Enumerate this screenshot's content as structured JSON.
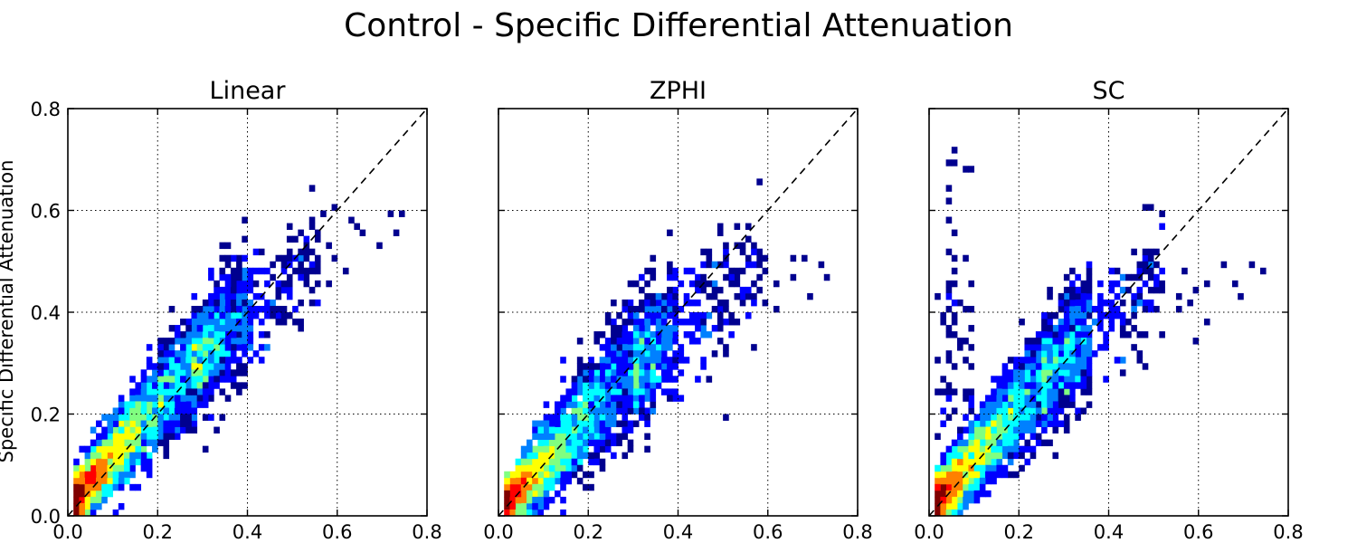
{
  "figure_title": "Control - Specific Differential Attenuation",
  "ylabel": "Specific Differential Attenuation",
  "colormap": [
    "#00008f",
    "#0000ff",
    "#0080ff",
    "#00ffff",
    "#80ff80",
    "#ffff00",
    "#ff8000",
    "#ff0000",
    "#800000"
  ],
  "chart_data": [
    {
      "type": "heatmap",
      "title": "Linear",
      "xlim": [
        0,
        0.8
      ],
      "ylim": [
        0,
        0.8
      ],
      "xticks": [
        "0.0",
        "0.2",
        "0.4",
        "0.6",
        "0.8"
      ],
      "yticks": [
        "0.0",
        "0.2",
        "0.4",
        "0.6",
        "0.8"
      ],
      "grid": true,
      "reference_line": "y = x (dashed)",
      "bin_size": 0.0125,
      "clusters": [
        {
          "type": "band",
          "x0": 0.015,
          "x1": 0.4,
          "slope": 1.02,
          "intercept": 0.045,
          "spread_at_start": 0.025,
          "spread_growth": 0.11,
          "peak_at": 0.06,
          "peak_decay": 0.24,
          "count": 500
        },
        {
          "type": "band",
          "x0": 0.28,
          "x1": 0.56,
          "slope": 0.78,
          "intercept": 0.11,
          "spread_at_start": 0.045,
          "spread_growth": 0.05,
          "peak_at": 0.28,
          "peak_decay": 0.3,
          "count": 55
        },
        {
          "type": "scatter",
          "points": [
            [
              0.43,
              0.52
            ],
            [
              0.46,
              0.49
            ],
            [
              0.5,
              0.51
            ],
            [
              0.52,
              0.47
            ],
            [
              0.55,
              0.45
            ],
            [
              0.57,
              0.59
            ],
            [
              0.6,
              0.61
            ],
            [
              0.63,
              0.58
            ],
            [
              0.64,
              0.57
            ],
            [
              0.66,
              0.55
            ],
            [
              0.69,
              0.53
            ],
            [
              0.72,
              0.6
            ],
            [
              0.74,
              0.59
            ],
            [
              0.73,
              0.56
            ],
            [
              0.6,
              0.5
            ],
            [
              0.62,
              0.48
            ],
            [
              0.58,
              0.45
            ],
            [
              0.55,
              0.42
            ],
            [
              0.5,
              0.41
            ],
            [
              0.47,
              0.39
            ],
            [
              0.52,
              0.37
            ],
            [
              0.44,
              0.36
            ],
            [
              0.48,
              0.44
            ],
            [
              0.42,
              0.46
            ],
            [
              0.58,
              0.53
            ]
          ]
        }
      ]
    },
    {
      "type": "heatmap",
      "title": "ZPHI",
      "xlim": [
        0,
        0.8
      ],
      "ylim": [
        0,
        0.8
      ],
      "xticks": [
        "0.0",
        "0.2",
        "0.4",
        "0.6",
        "0.8"
      ],
      "yticks": [],
      "grid": true,
      "reference_line": "y = x (dashed)",
      "bin_size": 0.0125,
      "clusters": [
        {
          "type": "band",
          "x0": 0.015,
          "x1": 0.4,
          "slope": 0.98,
          "intercept": 0.035,
          "spread_at_start": 0.025,
          "spread_growth": 0.13,
          "peak_at": 0.05,
          "peak_decay": 0.22,
          "count": 480
        },
        {
          "type": "band",
          "x0": 0.3,
          "x1": 0.58,
          "slope": 0.75,
          "intercept": 0.08,
          "spread_at_start": 0.05,
          "spread_growth": 0.05,
          "peak_at": 0.3,
          "peak_decay": 0.3,
          "count": 50
        },
        {
          "type": "scatter",
          "points": [
            [
              0.44,
              0.46
            ],
            [
              0.47,
              0.43
            ],
            [
              0.5,
              0.52
            ],
            [
              0.51,
              0.5
            ],
            [
              0.55,
              0.54
            ],
            [
              0.58,
              0.51
            ],
            [
              0.6,
              0.48
            ],
            [
              0.62,
              0.45
            ],
            [
              0.65,
              0.51
            ],
            [
              0.66,
              0.47
            ],
            [
              0.68,
              0.5
            ],
            [
              0.72,
              0.49
            ],
            [
              0.73,
              0.47
            ],
            [
              0.7,
              0.43
            ],
            [
              0.6,
              0.42
            ],
            [
              0.62,
              0.4
            ],
            [
              0.55,
              0.39
            ],
            [
              0.52,
              0.36
            ],
            [
              0.5,
              0.4
            ],
            [
              0.46,
              0.36
            ],
            [
              0.48,
              0.4
            ],
            [
              0.56,
              0.44
            ],
            [
              0.6,
              0.5
            ]
          ]
        }
      ]
    },
    {
      "type": "heatmap",
      "title": "SC",
      "xlim": [
        0,
        0.8
      ],
      "ylim": [
        0,
        0.8
      ],
      "xticks": [
        "0.0",
        "0.2",
        "0.4",
        "0.6",
        "0.8"
      ],
      "yticks": [],
      "grid": true,
      "reference_line": "y = x (dashed)",
      "bin_size": 0.0125,
      "clusters": [
        {
          "type": "band",
          "x0": 0.015,
          "x1": 0.36,
          "slope": 1.0,
          "intercept": 0.04,
          "spread_at_start": 0.025,
          "spread_growth": 0.12,
          "peak_at": 0.05,
          "peak_decay": 0.23,
          "count": 430
        },
        {
          "type": "band",
          "x0": 0.25,
          "x1": 0.52,
          "slope": 0.8,
          "intercept": 0.1,
          "spread_at_start": 0.045,
          "spread_growth": 0.05,
          "peak_at": 0.25,
          "peak_decay": 0.3,
          "count": 45
        },
        {
          "type": "column",
          "x0": 0.015,
          "x1": 0.1,
          "y0": 0.15,
          "y1": 0.45,
          "count": 55
        },
        {
          "type": "scatter",
          "points": [
            [
              0.04,
              0.69
            ],
            [
              0.05,
              0.7
            ],
            [
              0.06,
              0.72
            ],
            [
              0.08,
              0.68
            ],
            [
              0.09,
              0.68
            ],
            [
              0.04,
              0.64
            ],
            [
              0.04,
              0.62
            ],
            [
              0.06,
              0.55
            ],
            [
              0.04,
              0.58
            ],
            [
              0.04,
              0.52
            ],
            [
              0.06,
              0.5
            ],
            [
              0.08,
              0.5
            ],
            [
              0.06,
              0.48
            ],
            [
              0.06,
              0.46
            ],
            [
              0.04,
              0.46
            ],
            [
              0.09,
              0.46
            ],
            [
              0.04,
              0.43
            ],
            [
              0.08,
              0.4
            ],
            [
              0.05,
              0.38
            ],
            [
              0.04,
              0.36
            ],
            [
              0.46,
              0.47
            ],
            [
              0.5,
              0.46
            ],
            [
              0.52,
              0.48
            ],
            [
              0.55,
              0.43
            ],
            [
              0.58,
              0.42
            ],
            [
              0.6,
              0.44
            ],
            [
              0.62,
              0.45
            ],
            [
              0.65,
              0.49
            ],
            [
              0.68,
              0.45
            ],
            [
              0.7,
              0.43
            ],
            [
              0.72,
              0.49
            ],
            [
              0.74,
              0.48
            ],
            [
              0.62,
              0.38
            ],
            [
              0.55,
              0.4
            ],
            [
              0.5,
              0.41
            ],
            [
              0.6,
              0.35
            ],
            [
              0.44,
              0.38
            ],
            [
              0.48,
              0.36
            ],
            [
              0.57,
              0.48
            ]
          ]
        }
      ]
    }
  ]
}
